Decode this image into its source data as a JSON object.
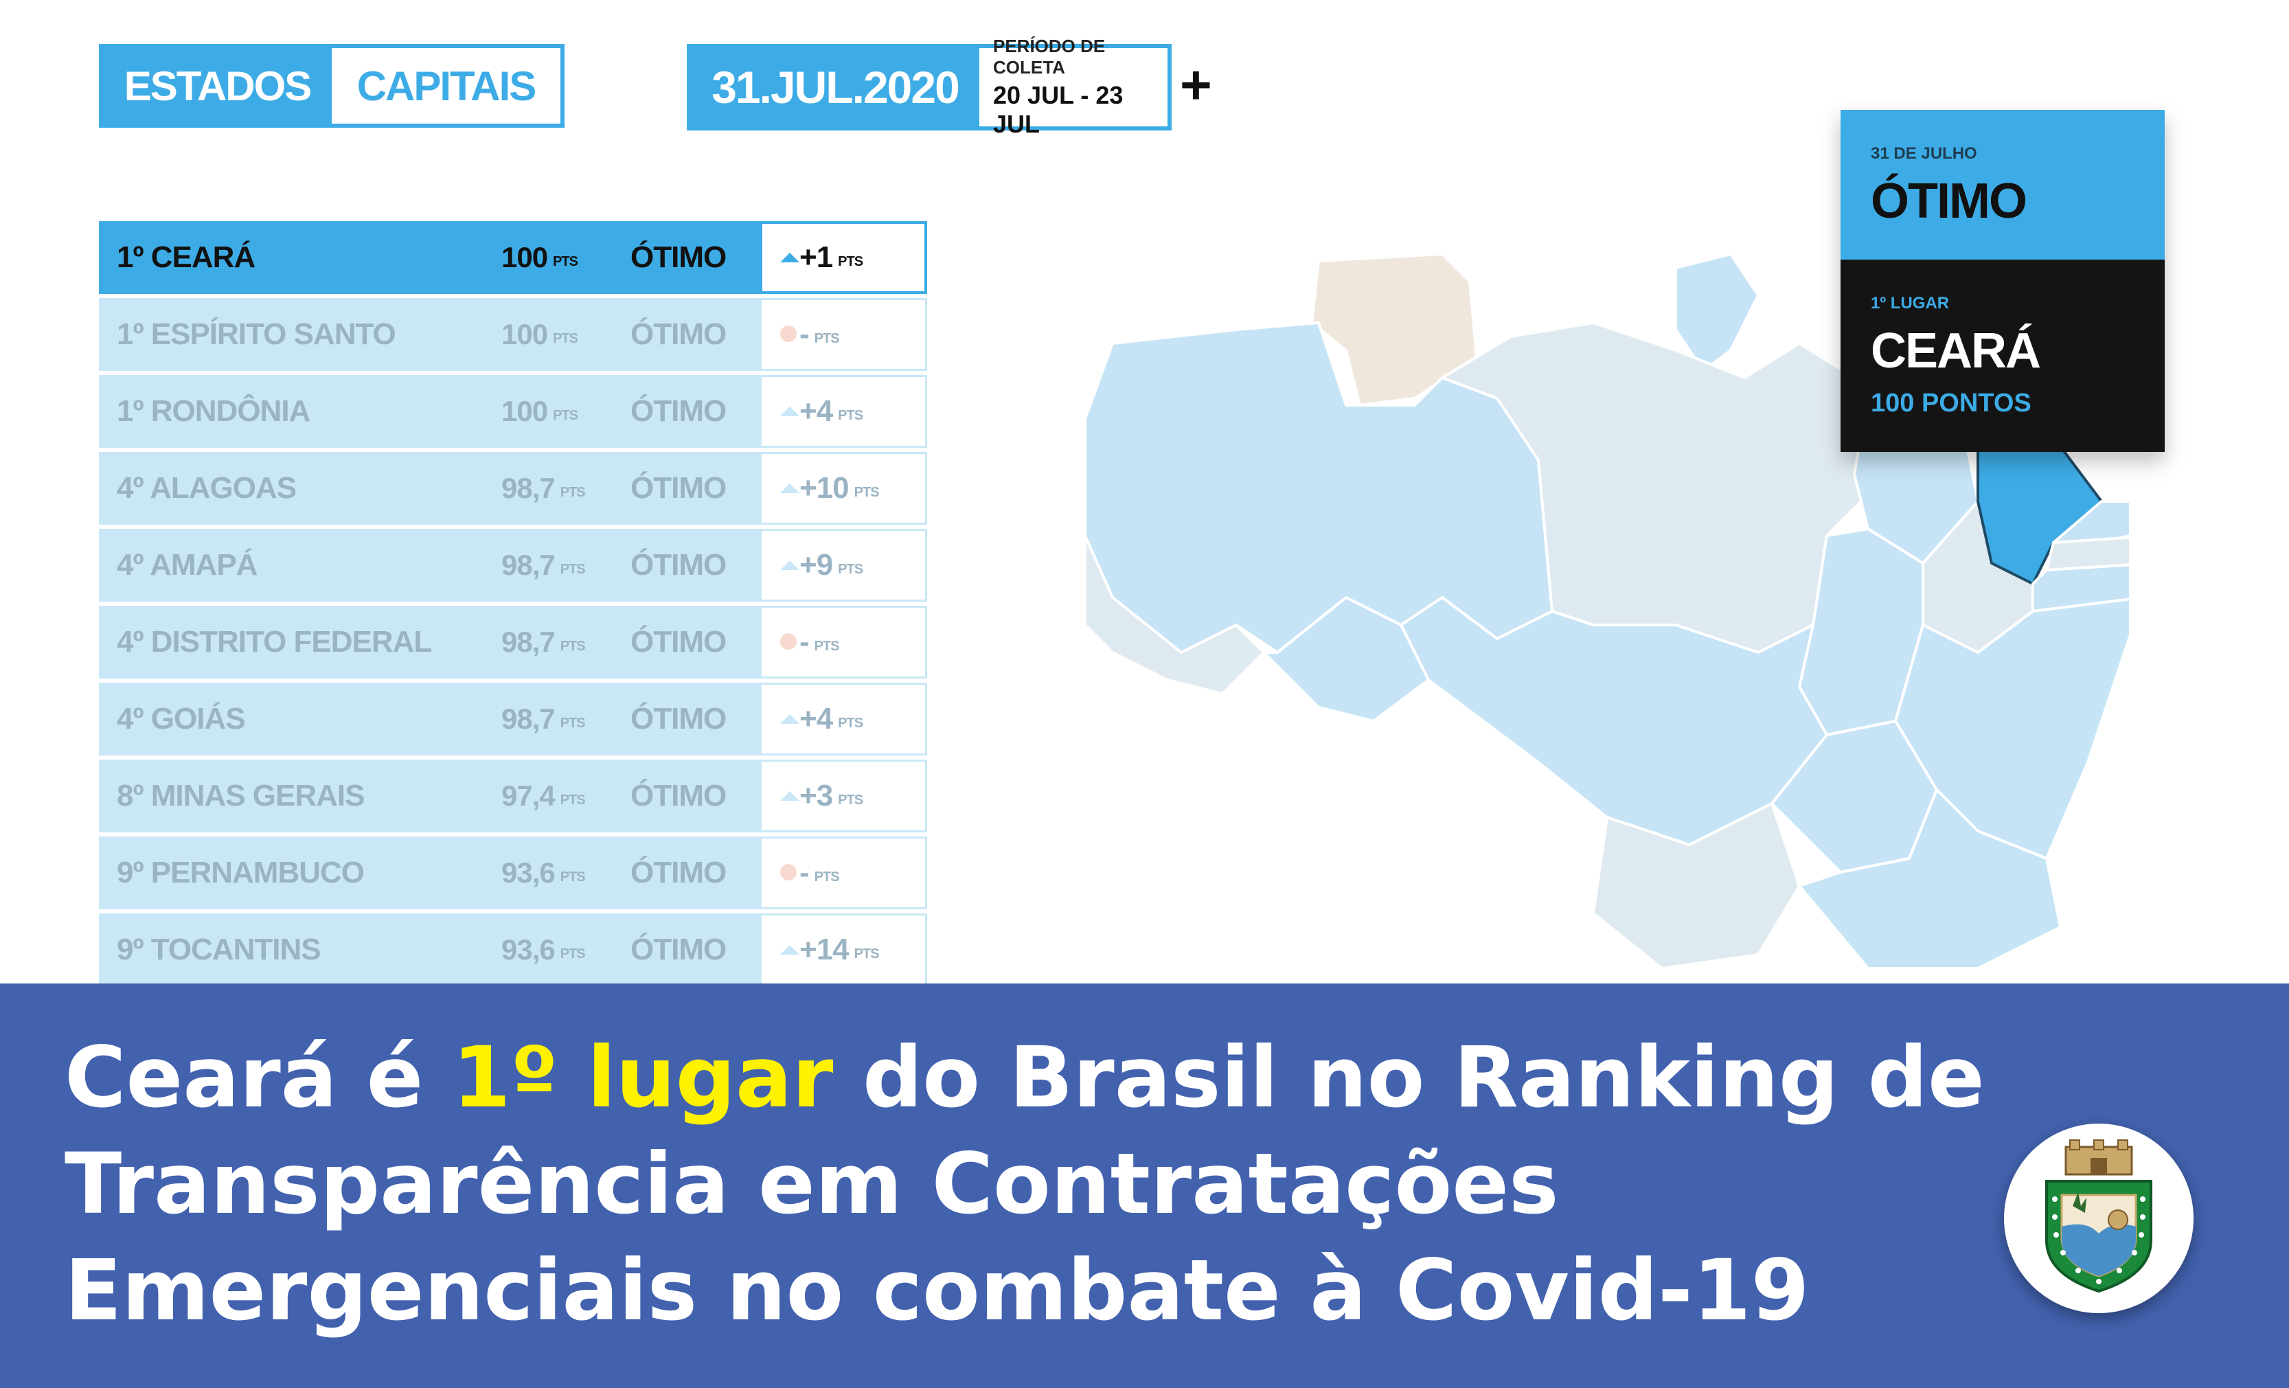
{
  "tabs": {
    "estados": "ESTADOS",
    "capitais": "CAPITAIS"
  },
  "date_box": {
    "date": "31.JUL.2020",
    "period_label": "PERÍODO DE COLETA",
    "period_value": "20 JUL - 23 JUL",
    "expand": "+"
  },
  "ranking": [
    {
      "name": "1º CEARÁ",
      "points": "100",
      "pts_unit": "PTS",
      "quality": "ÓTIMO",
      "change": "+1",
      "trend": "up"
    },
    {
      "name": "1º ESPÍRITO SANTO",
      "points": "100",
      "pts_unit": "PTS",
      "quality": "ÓTIMO",
      "change": "-",
      "trend": "none"
    },
    {
      "name": "1º RONDÔNIA",
      "points": "100",
      "pts_unit": "PTS",
      "quality": "ÓTIMO",
      "change": "+4",
      "trend": "up"
    },
    {
      "name": "4º ALAGOAS",
      "points": "98,7",
      "pts_unit": "PTS",
      "quality": "ÓTIMO",
      "change": "+10",
      "trend": "up"
    },
    {
      "name": "4º AMAPÁ",
      "points": "98,7",
      "pts_unit": "PTS",
      "quality": "ÓTIMO",
      "change": "+9",
      "trend": "up"
    },
    {
      "name": "4º DISTRITO FEDERAL",
      "points": "98,7",
      "pts_unit": "PTS",
      "quality": "ÓTIMO",
      "change": "-",
      "trend": "none"
    },
    {
      "name": "4º GOIÁS",
      "points": "98,7",
      "pts_unit": "PTS",
      "quality": "ÓTIMO",
      "change": "+4",
      "trend": "up"
    },
    {
      "name": "8º MINAS GERAIS",
      "points": "97,4",
      "pts_unit": "PTS",
      "quality": "ÓTIMO",
      "change": "+3",
      "trend": "up"
    },
    {
      "name": "9º PERNAMBUCO",
      "points": "93,6",
      "pts_unit": "PTS",
      "quality": "ÓTIMO",
      "change": "-",
      "trend": "none"
    },
    {
      "name": "9º TOCANTINS",
      "points": "93,6",
      "pts_unit": "PTS",
      "quality": "ÓTIMO",
      "change": "+14",
      "trend": "up"
    }
  ],
  "callout": {
    "date": "31 DE JULHO",
    "quality": "ÓTIMO",
    "place": "1º LUGAR",
    "state": "CEARÁ",
    "points": "100 PONTOS"
  },
  "banner": {
    "part1": "Ceará é ",
    "highlight": "1º lugar",
    "part2": " do Brasil no Ranking de Transparência em Contratações Emergenciais no combate à Covid-19"
  },
  "colors": {
    "accent": "#3dace6",
    "banner": "#4262ae",
    "highlight": "#fff200",
    "row_bg": "#c9e7f7",
    "map_highlight": "#3dace6"
  },
  "icons": {
    "trend_up": "triangle-up-icon",
    "no_change": "dot-icon",
    "seal": "ceara-coat-of-arms-icon"
  }
}
